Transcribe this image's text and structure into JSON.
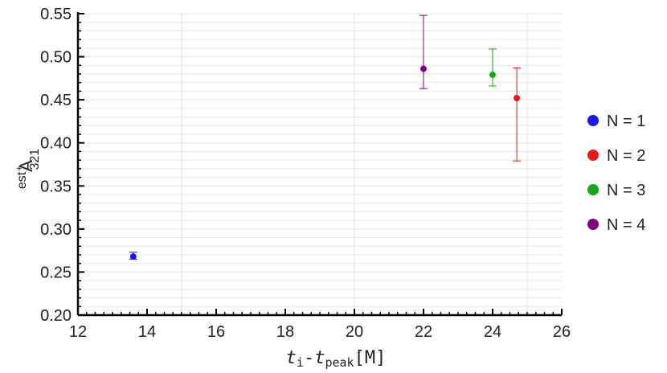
{
  "chart_data": {
    "type": "scatter",
    "y_label_parts": [
      "est",
      "A",
      "+",
      "321"
    ],
    "x_label_parts": [
      "t",
      "i",
      "-",
      "t",
      "peak",
      "[M]"
    ],
    "xlim": [
      12,
      26
    ],
    "xticks": [
      12,
      14,
      16,
      18,
      20,
      22,
      24,
      26
    ],
    "ylim": [
      0.2,
      0.55
    ],
    "yticks": [
      {
        "value": 0.2,
        "label": "0.20"
      },
      0.25,
      {
        "value": 0.3,
        "label": "0.30"
      },
      0.35,
      {
        "value": 0.4,
        "label": "0.40"
      },
      0.45,
      {
        "value": 0.5,
        "label": "0.50"
      },
      0.55
    ],
    "xgrid": [
      15,
      20,
      25
    ],
    "ygrid_step": 0.01,
    "legend": "right",
    "series": [
      {
        "name": "N = 1",
        "color": "#1a1ae6",
        "x": [
          13.6
        ],
        "values": [
          0.268
        ],
        "lower": [
          0.265
        ],
        "upper": [
          0.273
        ]
      },
      {
        "name": "N = 2",
        "color": "#e61a1a",
        "x": [
          24.7
        ],
        "values": [
          0.452
        ],
        "lower": [
          0.379
        ],
        "upper": [
          0.487
        ]
      },
      {
        "name": "N = 3",
        "color": "#1aa61a",
        "x": [
          24.0
        ],
        "values": [
          0.479
        ],
        "lower": [
          0.466
        ],
        "upper": [
          0.509
        ]
      },
      {
        "name": "N = 4",
        "color": "#800080",
        "x": [
          22.0
        ],
        "values": [
          0.486
        ],
        "lower": [
          0.463
        ],
        "upper": [
          0.548
        ]
      }
    ]
  }
}
